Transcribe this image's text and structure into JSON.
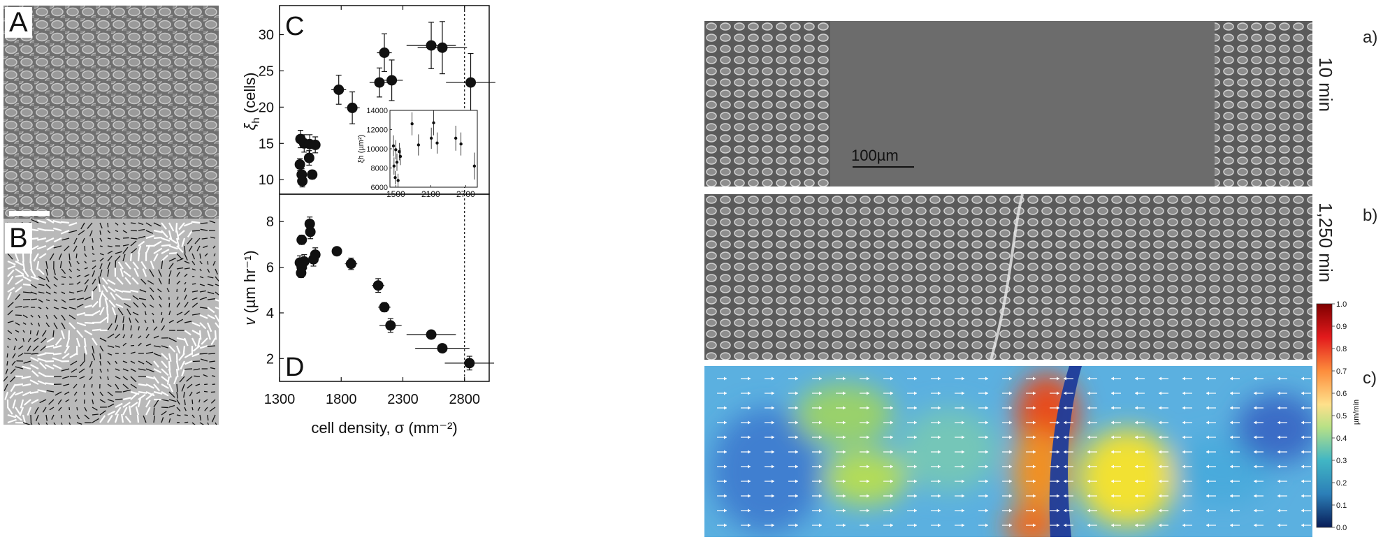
{
  "panel_labels": {
    "A": "A",
    "B": "B",
    "C": "C",
    "D": "D"
  },
  "micrograph_right": {
    "labels": {
      "a": "a)",
      "b": "b)",
      "c": "c)"
    },
    "times": {
      "a": "10 min",
      "b": "1,250 min"
    },
    "scalebar": "100µm"
  },
  "colorbar": {
    "unit": "µm/min",
    "ticks": [
      "1.0",
      "0.9",
      "0.8",
      "0.7",
      "0.6",
      "0.5",
      "0.4",
      "0.3",
      "0.2",
      "0.1",
      "0.0"
    ],
    "colors": [
      "#7f0000",
      "#d7191c",
      "#f46d43",
      "#fdae61",
      "#fee08b",
      "#d9ef8b",
      "#66c2a5",
      "#3288bd",
      "#2c5fb5",
      "#1a237e"
    ]
  },
  "chart_data": [
    {
      "type": "scatter",
      "panel": "C",
      "ylabel_symbol": "ξ",
      "ylabel_sub": "h",
      "ylabel_unit": "(cells)",
      "ylim": [
        8,
        34
      ],
      "xlim": [
        1300,
        3000
      ],
      "yticks": [
        10,
        15,
        20,
        25,
        30
      ],
      "points": [
        {
          "x": 1470,
          "y": 15.6,
          "xerr": 30,
          "yerr": 1.2
        },
        {
          "x": 1500,
          "y": 15.0,
          "xerr": 30,
          "yerr": 1.2
        },
        {
          "x": 1545,
          "y": 14.9,
          "xerr": 30,
          "yerr": 1.3
        },
        {
          "x": 1590,
          "y": 14.8,
          "xerr": 35,
          "yerr": 1.1
        },
        {
          "x": 1540,
          "y": 13.0,
          "xerr": 30,
          "yerr": 1.0
        },
        {
          "x": 1465,
          "y": 12.1,
          "xerr": 25,
          "yerr": 0.8
        },
        {
          "x": 1480,
          "y": 10.7,
          "xerr": 25,
          "yerr": 0.8
        },
        {
          "x": 1485,
          "y": 9.8,
          "xerr": 25,
          "yerr": 0.8
        },
        {
          "x": 1565,
          "y": 10.7,
          "xerr": 30,
          "yerr": 0.6
        },
        {
          "x": 1780,
          "y": 22.4,
          "xerr": 60,
          "yerr": 2.0
        },
        {
          "x": 1890,
          "y": 19.9,
          "xerr": 60,
          "yerr": 2.2
        },
        {
          "x": 2110,
          "y": 23.4,
          "xerr": 80,
          "yerr": 2.0
        },
        {
          "x": 2150,
          "y": 27.5,
          "xerr": 60,
          "yerr": 2.6
        },
        {
          "x": 2210,
          "y": 23.7,
          "xerr": 90,
          "yerr": 2.8
        },
        {
          "x": 2530,
          "y": 28.5,
          "xerr": 200,
          "yerr": 3.2
        },
        {
          "x": 2620,
          "y": 28.2,
          "xerr": 200,
          "yerr": 3.6
        },
        {
          "x": 2850,
          "y": 23.4,
          "xerr": 200,
          "yerr": 4.0
        }
      ],
      "vline_x": 2800,
      "inset": {
        "ylabel": "ξh (µm²)",
        "xticks": [
          1500,
          2100,
          2700
        ],
        "yticks": [
          6000,
          8000,
          10000,
          12000,
          14000
        ],
        "xlim": [
          1400,
          2900
        ],
        "ylim": [
          6000,
          14000
        ],
        "points": [
          {
            "x": 1460,
            "y": 10300,
            "yerr": 1100
          },
          {
            "x": 1470,
            "y": 8200,
            "yerr": 900
          },
          {
            "x": 1490,
            "y": 7000,
            "yerr": 700
          },
          {
            "x": 1500,
            "y": 9900,
            "yerr": 1000
          },
          {
            "x": 1520,
            "y": 8600,
            "yerr": 900
          },
          {
            "x": 1540,
            "y": 6700,
            "yerr": 700
          },
          {
            "x": 1560,
            "y": 9700,
            "yerr": 900
          },
          {
            "x": 1580,
            "y": 9200,
            "yerr": 900
          },
          {
            "x": 1780,
            "y": 12600,
            "yerr": 1200
          },
          {
            "x": 1890,
            "y": 10400,
            "yerr": 1100
          },
          {
            "x": 2110,
            "y": 11100,
            "yerr": 1100
          },
          {
            "x": 2150,
            "y": 12700,
            "yerr": 1300
          },
          {
            "x": 2210,
            "y": 10600,
            "yerr": 1100
          },
          {
            "x": 2530,
            "y": 11100,
            "yerr": 1300
          },
          {
            "x": 2620,
            "y": 10500,
            "yerr": 1200
          },
          {
            "x": 2850,
            "y": 8200,
            "yerr": 1400
          }
        ]
      }
    },
    {
      "type": "scatter",
      "panel": "D",
      "ylabel_symbol": "v",
      "ylabel_unit": "(µm hr⁻¹)",
      "xlabel": "cell density, σ (mm⁻²)",
      "xticks": [
        1300,
        1800,
        2300,
        2800
      ],
      "yticks": [
        2,
        4,
        6,
        8
      ],
      "ylim": [
        1,
        9.2
      ],
      "xlim": [
        1300,
        3000
      ],
      "points": [
        {
          "x": 1545,
          "y": 7.9,
          "xerr": 25,
          "yerr": 0.3
        },
        {
          "x": 1550,
          "y": 7.55,
          "xerr": 25,
          "yerr": 0.3
        },
        {
          "x": 1480,
          "y": 7.2,
          "xerr": 25,
          "yerr": 0.2
        },
        {
          "x": 1765,
          "y": 6.7,
          "xerr": 40,
          "yerr": 0.15
        },
        {
          "x": 1465,
          "y": 6.2,
          "xerr": 30,
          "yerr": 0.3
        },
        {
          "x": 1500,
          "y": 6.25,
          "xerr": 30,
          "yerr": 0.3
        },
        {
          "x": 1480,
          "y": 6.0,
          "xerr": 25,
          "yerr": 0.3
        },
        {
          "x": 1590,
          "y": 6.55,
          "xerr": 30,
          "yerr": 0.3
        },
        {
          "x": 1575,
          "y": 6.35,
          "xerr": 30,
          "yerr": 0.3
        },
        {
          "x": 1475,
          "y": 5.75,
          "xerr": 25,
          "yerr": 0.2
        },
        {
          "x": 1880,
          "y": 6.15,
          "xerr": 50,
          "yerr": 0.25
        },
        {
          "x": 2100,
          "y": 5.2,
          "xerr": 50,
          "yerr": 0.3
        },
        {
          "x": 2150,
          "y": 4.25,
          "xerr": 50,
          "yerr": 0.2
        },
        {
          "x": 2200,
          "y": 3.45,
          "xerr": 90,
          "yerr": 0.3
        },
        {
          "x": 2530,
          "y": 3.05,
          "xerr": 200,
          "yerr": 0.15
        },
        {
          "x": 2620,
          "y": 2.45,
          "xerr": 220,
          "yerr": 0.15
        },
        {
          "x": 2840,
          "y": 1.8,
          "xerr": 200,
          "yerr": 0.3
        }
      ],
      "vline_x": 2800
    }
  ]
}
